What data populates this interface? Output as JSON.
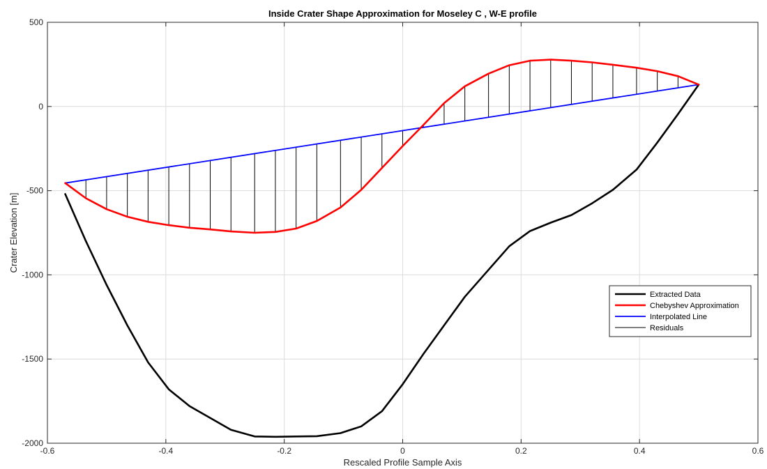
{
  "chart_data": {
    "type": "line",
    "title": "Inside Crater Shape Approximation for Moseley C , W-E profile",
    "xlabel": "Rescaled Profile Sample Axis",
    "ylabel": "Crater Elevation [m]",
    "xlim": [
      -0.6,
      0.6
    ],
    "ylim": [
      -2000,
      500
    ],
    "xticks": [
      -0.6,
      -0.4,
      -0.2,
      0,
      0.2,
      0.4,
      0.6
    ],
    "xtick_labels": [
      "-0.6",
      "-0.4",
      "-0.2",
      "0",
      "0.2",
      "0.4",
      "0.6"
    ],
    "yticks": [
      -2000,
      -1500,
      -1000,
      -500,
      0,
      500
    ],
    "ytick_labels": [
      "-2000",
      "-1500",
      "-1000",
      "-500",
      "0",
      "500"
    ],
    "grid": true,
    "legend_position": "lower-right",
    "series": [
      {
        "name": "Extracted Data",
        "color": "#000000",
        "x": [
          -0.57,
          -0.535,
          -0.5,
          -0.465,
          -0.43,
          -0.395,
          -0.36,
          -0.325,
          -0.29,
          -0.25,
          -0.215,
          -0.18,
          -0.145,
          -0.105,
          -0.07,
          -0.035,
          0.0,
          0.035,
          0.07,
          0.105,
          0.145,
          0.18,
          0.215,
          0.25,
          0.285,
          0.32,
          0.355,
          0.395,
          0.43,
          0.465,
          0.5
        ],
        "y": [
          -520,
          -800,
          -1060,
          -1300,
          -1520,
          -1680,
          -1780,
          -1850,
          -1920,
          -1960,
          -1962,
          -1960,
          -1958,
          -1940,
          -1900,
          -1810,
          -1650,
          -1470,
          -1300,
          -1130,
          -970,
          -830,
          -740,
          -690,
          -645,
          -575,
          -495,
          -375,
          -215,
          -45,
          130
        ]
      },
      {
        "name": "Chebyshev Approximation",
        "color": "#ff0000",
        "x": [
          -0.57,
          -0.535,
          -0.5,
          -0.465,
          -0.43,
          -0.395,
          -0.36,
          -0.325,
          -0.29,
          -0.25,
          -0.215,
          -0.18,
          -0.145,
          -0.105,
          -0.07,
          -0.035,
          0.0,
          0.035,
          0.07,
          0.105,
          0.145,
          0.18,
          0.215,
          0.25,
          0.285,
          0.32,
          0.355,
          0.395,
          0.43,
          0.465,
          0.5
        ],
        "y": [
          -455,
          -545,
          -610,
          -655,
          -685,
          -705,
          -720,
          -730,
          -742,
          -750,
          -745,
          -725,
          -680,
          -600,
          -495,
          -365,
          -235,
          -110,
          20,
          120,
          195,
          245,
          272,
          278,
          272,
          262,
          248,
          230,
          210,
          180,
          130
        ]
      },
      {
        "name": "Interpolated Line",
        "color": "#0000ff",
        "x": [
          -0.57,
          0.5
        ],
        "y": [
          -455,
          130
        ]
      },
      {
        "name": "Residuals",
        "color": "#000000",
        "style": "vertical segments between interpolated line and Chebyshev approximation"
      }
    ]
  }
}
